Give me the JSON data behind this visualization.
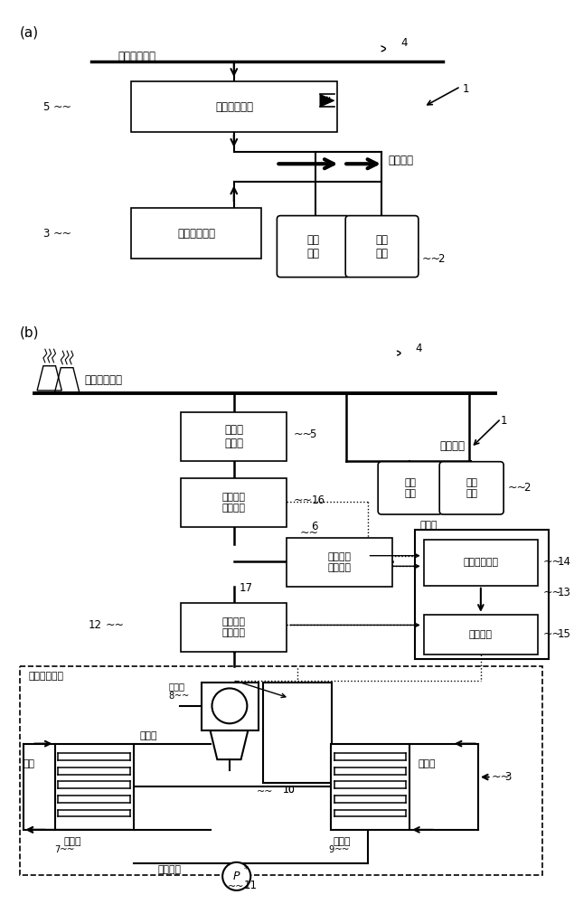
{
  "bg_color": "#ffffff",
  "line_color": "#000000",
  "box_color": "#ffffff",
  "text_color": "#000000",
  "fig_width": 6.35,
  "fig_height": 10.0,
  "label_a": "(a)",
  "label_b": "(b)",
  "elec_supply": "电力供给系统",
  "anti_relay_a": "防逆流继电器",
  "binary_gen_a": "二元发电系统",
  "outer_load1": "外部\n负载",
  "outer_load2": "外部\n负载",
  "elec_load": "电力负载",
  "anti_relay_b": "防逆流\n继电器",
  "supply_meas": "供给电力\n测定单元",
  "use_meas": "使用电力\n测定单元",
  "gen_meas": "发电电力\n测定单元",
  "circ_calc": "循环量计算部",
  "pump_ctrl": "泵控制部",
  "ctrl_dept": "控制部",
  "binary_sys": "二元发电系统",
  "generator": "发电机",
  "expander": "膨胀机",
  "evaporator": "蠹发器",
  "condenser": "凝结器",
  "hot_water": "温水",
  "cool_water": "冷却水",
  "working_fluid": "工作介质"
}
